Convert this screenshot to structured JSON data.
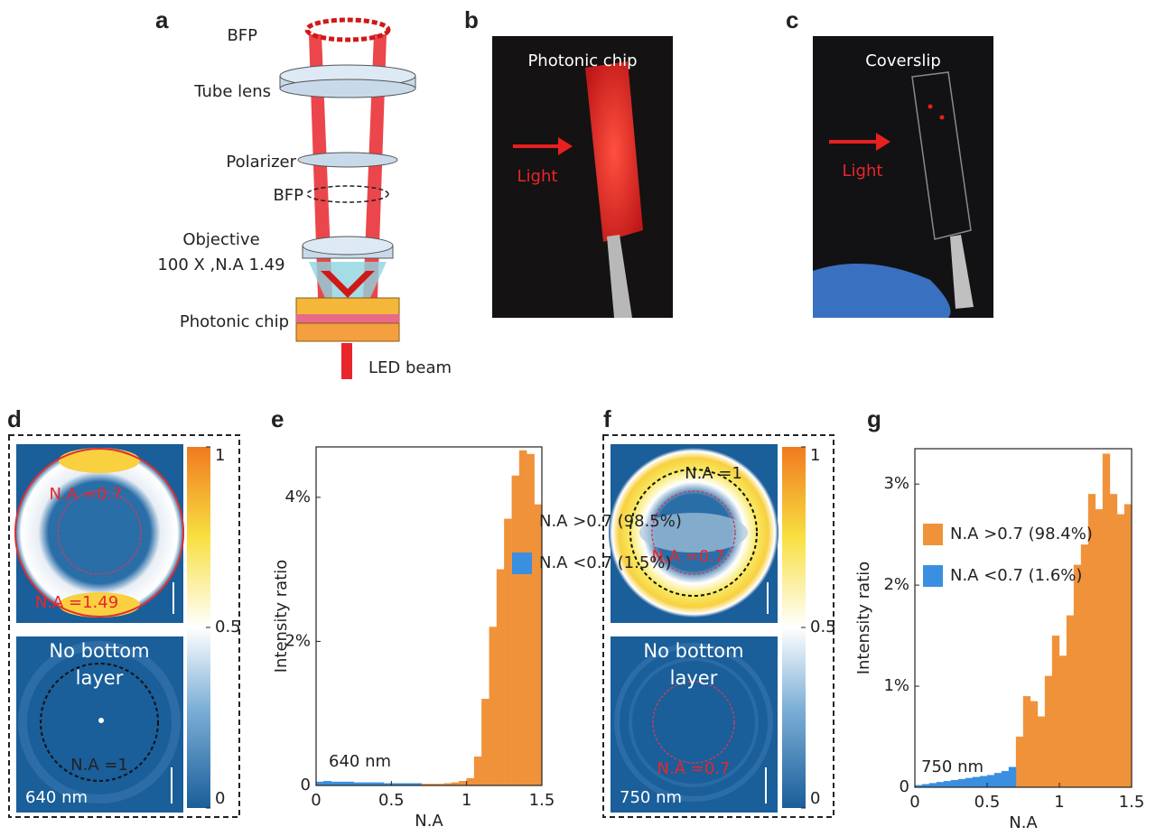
{
  "panels": {
    "labels": [
      "a",
      "b",
      "c",
      "d",
      "e",
      "f",
      "g"
    ]
  },
  "diagram": {
    "labels": [
      "BFP",
      "Tube lens",
      "Polarizer",
      "BFP",
      "Objective",
      "100 X ,N.A 1.49",
      "Photonic chip",
      "LED beam"
    ]
  },
  "photo_b": {
    "title": "Photonic chip",
    "arrow_label": "Light"
  },
  "photo_c": {
    "title": "Coverslip",
    "arrow_label": "Light"
  },
  "panel_d": {
    "top_labels": [
      "N.A =0.7",
      "N.A =1.49"
    ],
    "bottom_text": "No bottom layer",
    "bottom_label": "N.A =1",
    "wavelength": "640 nm",
    "colorbar_ticks": [
      1,
      0.5,
      0
    ]
  },
  "panel_f": {
    "top_labels": [
      "N.A =1",
      "N.A =0.7"
    ],
    "bottom_text": "No bottom layer",
    "bottom_label": "N.A =0.7",
    "wavelength": "750 nm",
    "colorbar_ticks": [
      1,
      0.5,
      0
    ]
  },
  "chart_data": [
    {
      "type": "histogram",
      "xlabel": "N.A",
      "ylabel": "Intensity ratio",
      "annotation": "640 nm",
      "xlim": [
        0,
        1.5
      ],
      "xticks": [
        0,
        0.5,
        1,
        1.5
      ],
      "ylim": [
        0,
        4.7
      ],
      "yticks": [
        0,
        {
          "value": 2,
          "label": "2%"
        },
        {
          "value": 4,
          "label": "4%"
        }
      ],
      "legend": "upper left",
      "series": [
        {
          "name": "N.A >0.7 (98.5%)",
          "color": "#f0923a",
          "bins": [
            0.7,
            0.75,
            0.8,
            0.85,
            0.9,
            0.95,
            1.0,
            1.05,
            1.1,
            1.15,
            1.2,
            1.25,
            1.3,
            1.35,
            1.4,
            1.45,
            1.5
          ],
          "values": [
            0.02,
            0.02,
            0.02,
            0.03,
            0.04,
            0.06,
            0.1,
            0.4,
            1.2,
            2.2,
            3.0,
            3.7,
            4.3,
            4.65,
            4.6,
            3.9
          ]
        },
        {
          "name": "N.A <0.7 (1.5%)",
          "color": "#3a8fe0",
          "bins": [
            0,
            0.05,
            0.1,
            0.15,
            0.2,
            0.25,
            0.3,
            0.35,
            0.4,
            0.45,
            0.5,
            0.55,
            0.6,
            0.65,
            0.7
          ],
          "values": [
            0.05,
            0.06,
            0.05,
            0.05,
            0.05,
            0.04,
            0.04,
            0.04,
            0.04,
            0.03,
            0.03,
            0.03,
            0.03,
            0.03
          ]
        }
      ]
    },
    {
      "type": "histogram",
      "xlabel": "N.A",
      "ylabel": "Intensity ratio",
      "annotation": "750 nm",
      "xlim": [
        0,
        1.5
      ],
      "xticks": [
        0,
        0.5,
        1,
        1.5
      ],
      "ylim": [
        0,
        3.35
      ],
      "yticks": [
        0,
        {
          "value": 1,
          "label": "1%"
        },
        {
          "value": 2,
          "label": "2%"
        },
        {
          "value": 3,
          "label": "3%"
        }
      ],
      "legend": "upper left",
      "series": [
        {
          "name": "N.A >0.7 (98.4%)",
          "color": "#f0923a",
          "bins": [
            0.7,
            0.75,
            0.8,
            0.85,
            0.9,
            0.95,
            1.0,
            1.05,
            1.1,
            1.15,
            1.2,
            1.25,
            1.3,
            1.35,
            1.4,
            1.45,
            1.5
          ],
          "values": [
            0.5,
            0.9,
            0.85,
            0.7,
            1.1,
            1.5,
            1.3,
            1.7,
            2.2,
            2.4,
            2.9,
            2.75,
            3.3,
            2.9,
            2.7,
            2.8
          ]
        },
        {
          "name": "N.A <0.7 (1.6%)",
          "color": "#3a8fe0",
          "bins": [
            0,
            0.05,
            0.1,
            0.15,
            0.2,
            0.25,
            0.3,
            0.35,
            0.4,
            0.45,
            0.5,
            0.55,
            0.6,
            0.65,
            0.7
          ],
          "values": [
            0.02,
            0.03,
            0.04,
            0.05,
            0.06,
            0.07,
            0.08,
            0.09,
            0.1,
            0.11,
            0.12,
            0.14,
            0.16,
            0.2
          ]
        }
      ]
    }
  ]
}
